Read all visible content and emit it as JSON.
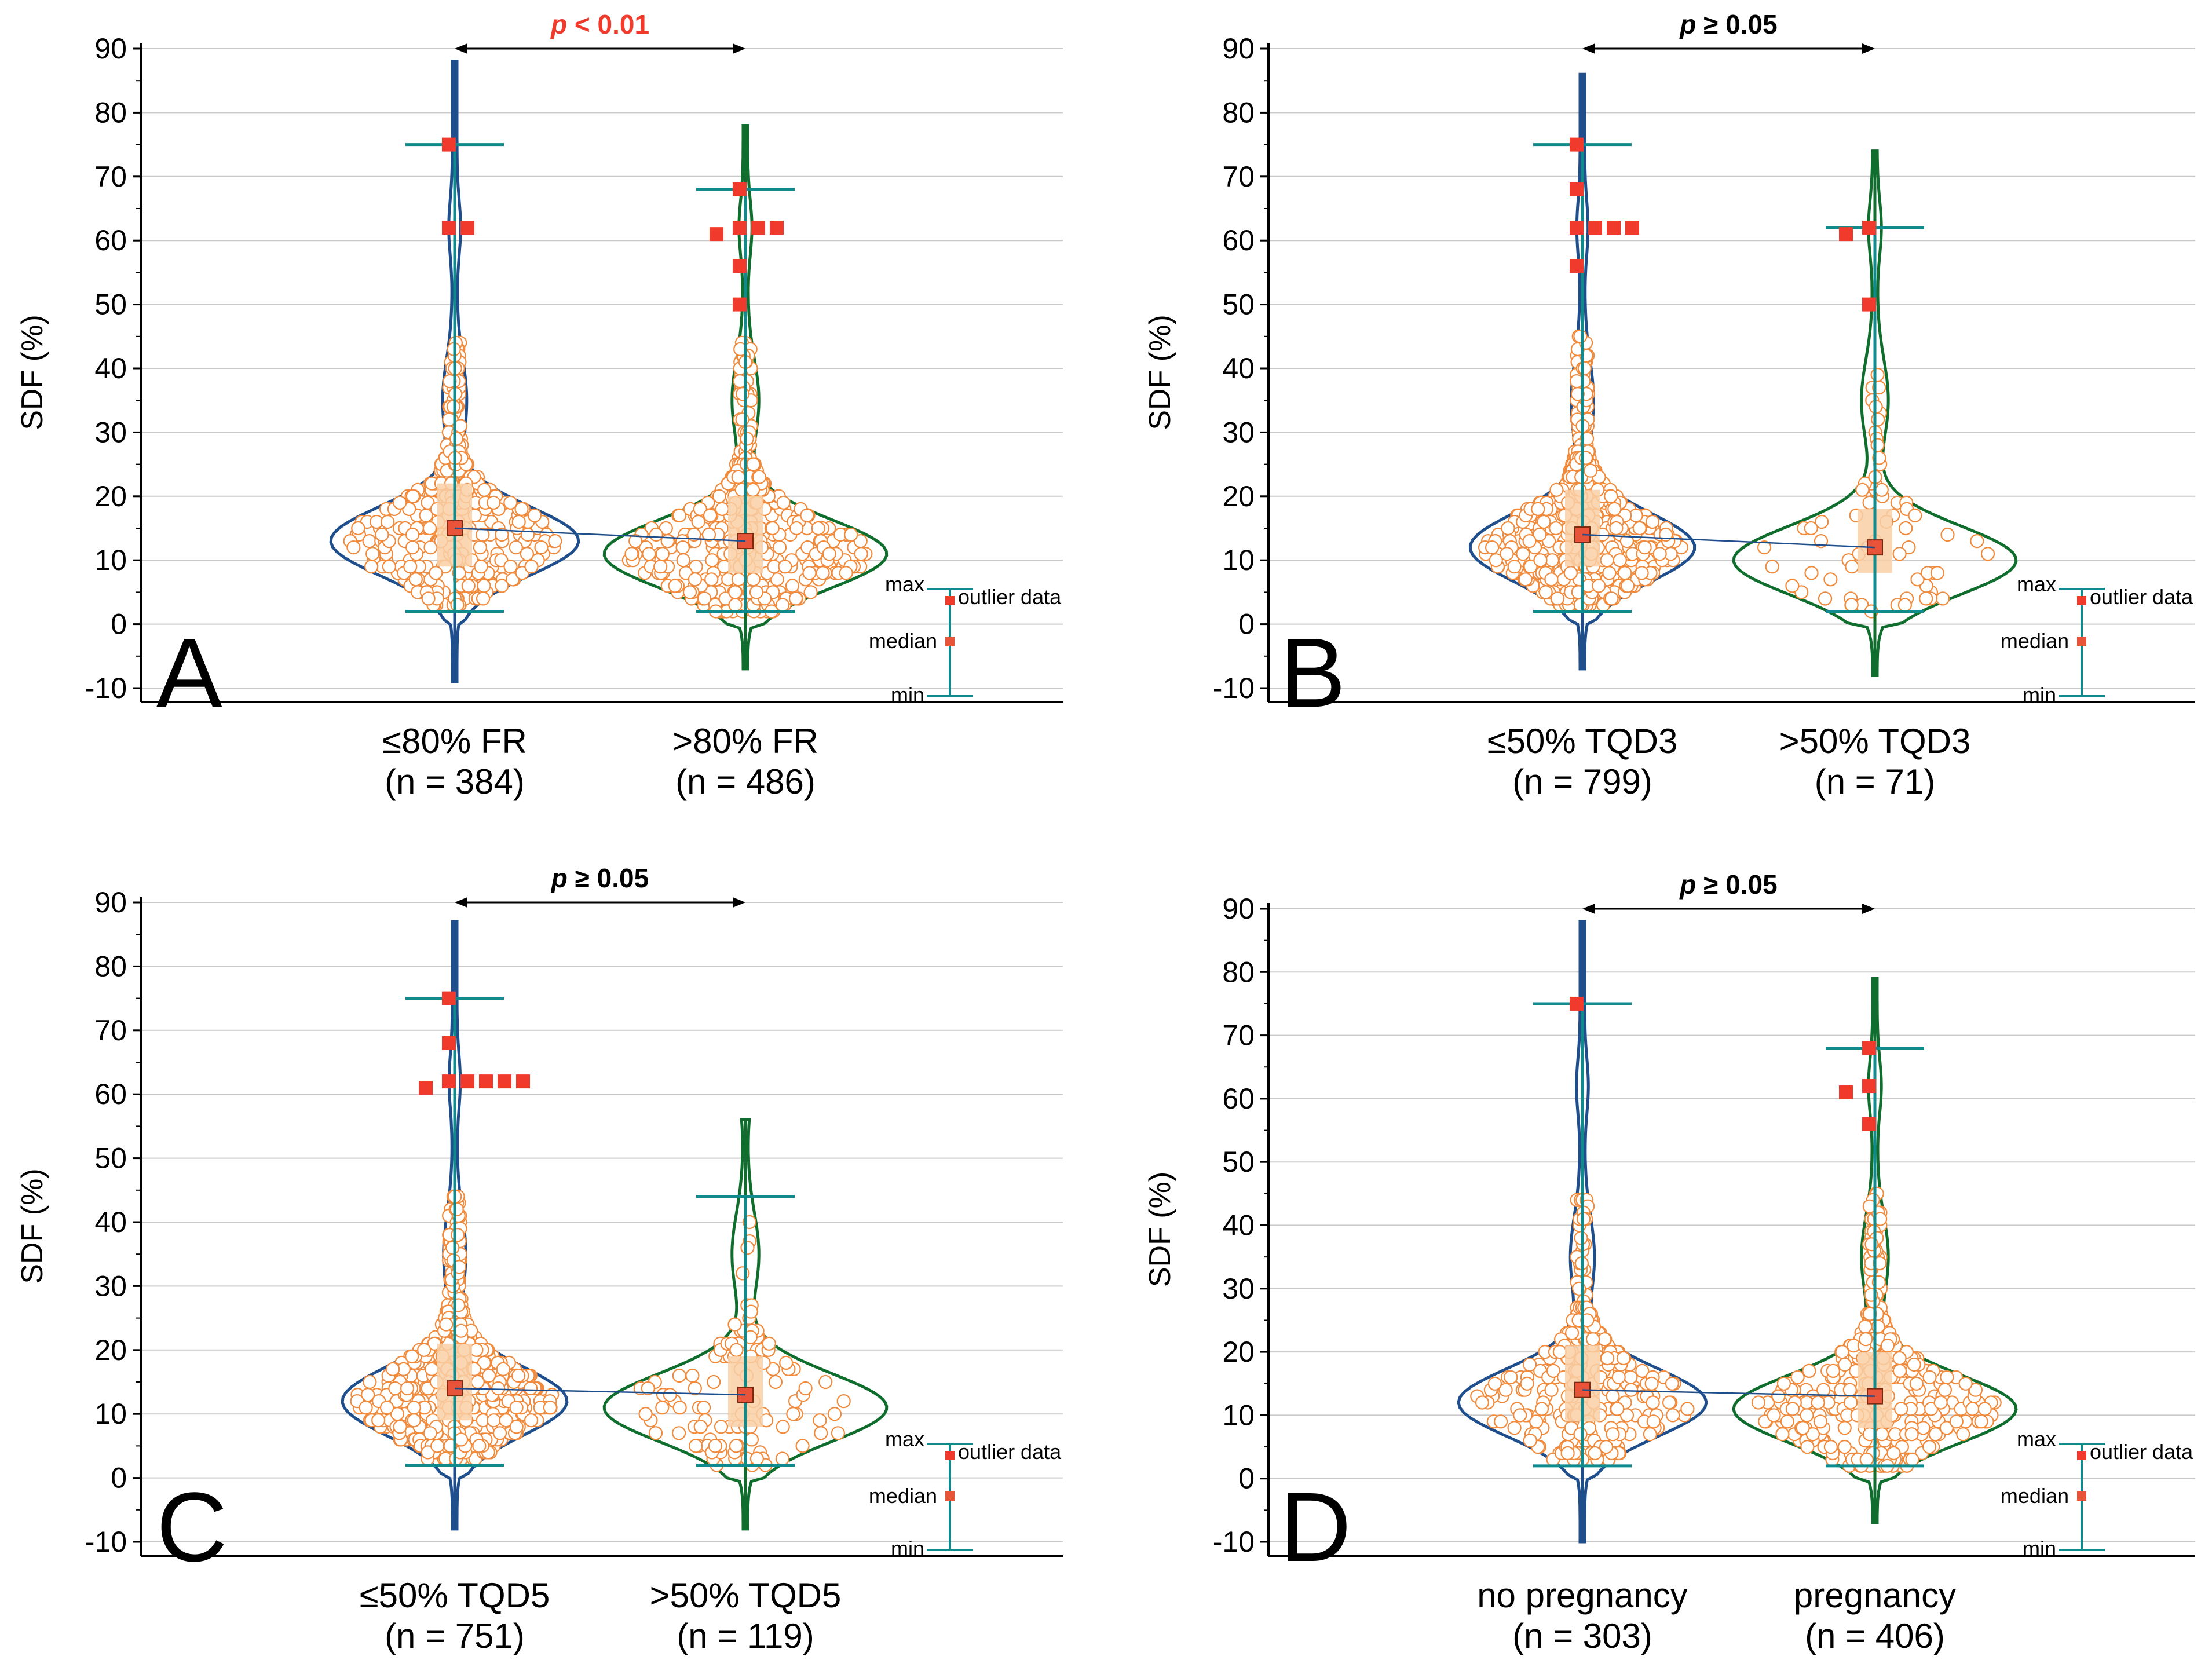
{
  "figure": {
    "y_axis_label": "SDF (%)",
    "colors": {
      "group1": "#1f4e8c",
      "group2": "#0f6e2d",
      "whisker": "#0f8b8d",
      "box_fill": "#f9cfa6",
      "point_edge": "#f08a3c",
      "median": "#e8543a",
      "outlier": "#f03a2b",
      "significant": "#f03a2b",
      "median_link": "#1f4e8c",
      "grid": "#c9c9c9"
    },
    "legend": {
      "max_label": "max",
      "median_label": "median",
      "min_label": "min",
      "outlier_label": "outlier data"
    }
  },
  "chart_data": [
    {
      "panel": "A",
      "type": "violin",
      "ylabel": "SDF (%)",
      "ylim": [
        -10,
        90
      ],
      "yticks": [
        -10,
        0,
        10,
        20,
        30,
        40,
        50,
        60,
        70,
        80,
        90
      ],
      "p_label_italic": "p",
      "p_label_rest": " < 0.01",
      "p_significant": true,
      "groups": [
        {
          "label": "≤80% FR",
          "n_label": "(n = 384)",
          "n": 384,
          "median": 15,
          "q1": 9,
          "q3": 22,
          "min": 2,
          "max": 75,
          "kde_min": -9,
          "kde_max": 88,
          "outliers": [
            75,
            62,
            62
          ]
        },
        {
          "label": ">80% FR",
          "n_label": "(n = 486)",
          "n": 486,
          "median": 13,
          "q1": 8,
          "q3": 20,
          "min": 2,
          "max": 68,
          "kde_min": -7,
          "kde_max": 78,
          "outliers": [
            68,
            62,
            62,
            62,
            61,
            56,
            50
          ]
        }
      ]
    },
    {
      "panel": "B",
      "type": "violin",
      "ylabel": "SDF (%)",
      "ylim": [
        -10,
        90
      ],
      "yticks": [
        -10,
        0,
        10,
        20,
        30,
        40,
        50,
        60,
        70,
        80,
        90
      ],
      "p_label_italic": "p",
      "p_label_rest": " ≥ 0.05",
      "p_significant": false,
      "groups": [
        {
          "label": "≤50% TQD3",
          "n_label": "(n = 799)",
          "n": 799,
          "median": 14,
          "q1": 9,
          "q3": 21,
          "min": 2,
          "max": 75,
          "kde_min": -7,
          "kde_max": 86,
          "outliers": [
            75,
            68,
            62,
            62,
            62,
            62,
            56
          ]
        },
        {
          "label": ">50% TQD3",
          "n_label": "(n = 71)",
          "n": 71,
          "median": 12,
          "q1": 8,
          "q3": 18,
          "min": 2,
          "max": 62,
          "kde_min": -8,
          "kde_max": 74,
          "outliers": [
            62,
            61,
            50
          ]
        }
      ]
    },
    {
      "panel": "C",
      "type": "violin",
      "ylabel": "SDF (%)",
      "ylim": [
        -10,
        90
      ],
      "yticks": [
        -10,
        0,
        10,
        20,
        30,
        40,
        50,
        60,
        70,
        80,
        90
      ],
      "p_label_italic": "p",
      "p_label_rest": " ≥ 0.05",
      "p_significant": false,
      "groups": [
        {
          "label": "≤50% TQD5",
          "n_label": "(n = 751)",
          "n": 751,
          "median": 14,
          "q1": 9,
          "q3": 21,
          "min": 2,
          "max": 75,
          "kde_min": -8,
          "kde_max": 87,
          "outliers": [
            75,
            68,
            62,
            62,
            62,
            62,
            62,
            61
          ]
        },
        {
          "label": ">50% TQD5",
          "n_label": "(n = 119)",
          "n": 119,
          "median": 13,
          "q1": 8,
          "q3": 19,
          "min": 2,
          "max": 44,
          "kde_min": -8,
          "kde_max": 56,
          "outliers": []
        }
      ]
    },
    {
      "panel": "D",
      "type": "violin",
      "ylabel": "SDF (%)",
      "ylim": [
        -10,
        90
      ],
      "yticks": [
        -10,
        0,
        10,
        20,
        30,
        40,
        50,
        60,
        70,
        80,
        90
      ],
      "p_label_italic": "p",
      "p_label_rest": " ≥ 0.05",
      "p_significant": false,
      "groups": [
        {
          "label": "no pregnancy",
          "n_label": "(n = 303)",
          "n": 303,
          "median": 14,
          "q1": 9,
          "q3": 21,
          "min": 2,
          "max": 75,
          "kde_min": -10,
          "kde_max": 88,
          "outliers": [
            75
          ]
        },
        {
          "label": "pregnancy",
          "n_label": "(n = 406)",
          "n": 406,
          "median": 13,
          "q1": 8,
          "q3": 20,
          "min": 2,
          "max": 68,
          "kde_min": -7,
          "kde_max": 79,
          "outliers": [
            68,
            62,
            61,
            56
          ]
        }
      ]
    }
  ]
}
